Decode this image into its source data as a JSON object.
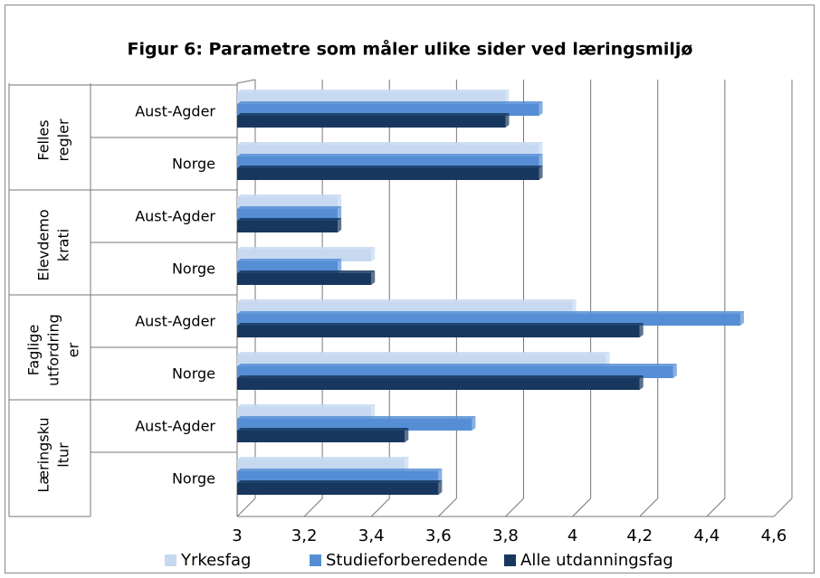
{
  "chart_data": {
    "type": "bar",
    "orientation": "horizontal",
    "title": "Figur 6: Parametre som måler ulike sider ved læringsmiljø",
    "groups": [
      {
        "label_lines": [
          "Felles",
          "regler"
        ]
      },
      {
        "label_lines": [
          "Elevdemo",
          "krati"
        ]
      },
      {
        "label_lines": [
          "Faglige",
          "utfordring",
          "er"
        ]
      },
      {
        "label_lines": [
          "Læringsku",
          "ltur"
        ]
      }
    ],
    "categories": [
      "Aust-Agder",
      "Norge",
      "Aust-Agder",
      "Norge",
      "Aust-Agder",
      "Norge",
      "Aust-Agder",
      "Norge"
    ],
    "series": [
      {
        "name": "Yrkesfag",
        "color": "#c6d9f1",
        "values": [
          3.8,
          3.9,
          3.3,
          3.4,
          4.0,
          4.1,
          3.4,
          3.5
        ]
      },
      {
        "name": "Studieforberedende",
        "color": "#558ed5",
        "values": [
          3.9,
          3.9,
          3.3,
          3.3,
          4.5,
          4.3,
          3.7,
          3.6
        ]
      },
      {
        "name": "Alle utdanningsfag",
        "color": "#17375e",
        "values": [
          3.8,
          3.9,
          3.3,
          3.4,
          4.2,
          4.2,
          3.5,
          3.6
        ]
      }
    ],
    "xlim": [
      3,
      4.6
    ],
    "xticks": [
      3,
      {
        "value": 3.2,
        "label": "3,2"
      },
      {
        "value": 3.4,
        "label": "3,4"
      },
      {
        "value": 3.6,
        "label": "3,6"
      },
      {
        "value": 3.8,
        "label": "3,8"
      },
      4,
      {
        "value": 4.2,
        "label": "4,2"
      },
      {
        "value": 4.4,
        "label": "4,4"
      },
      {
        "value": 4.6,
        "label": "4,6"
      }
    ],
    "grid": true,
    "legend": "bottom"
  }
}
